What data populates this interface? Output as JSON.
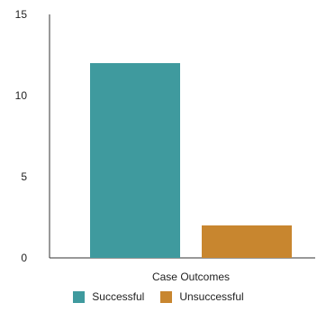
{
  "chart_data": {
    "type": "bar",
    "categories": [
      "Case Outcomes"
    ],
    "series": [
      {
        "name": "Successful",
        "values": [
          12
        ],
        "color": "#3f9a9e"
      },
      {
        "name": "Unsuccessful",
        "values": [
          2
        ],
        "color": "#c8862f"
      }
    ],
    "title": "",
    "xlabel": "Case Outcomes",
    "ylabel": "",
    "ylim": [
      0,
      15
    ],
    "yticks": [
      "0",
      "5",
      "10",
      "15"
    ],
    "grid": false,
    "legend_position": "bottom"
  }
}
